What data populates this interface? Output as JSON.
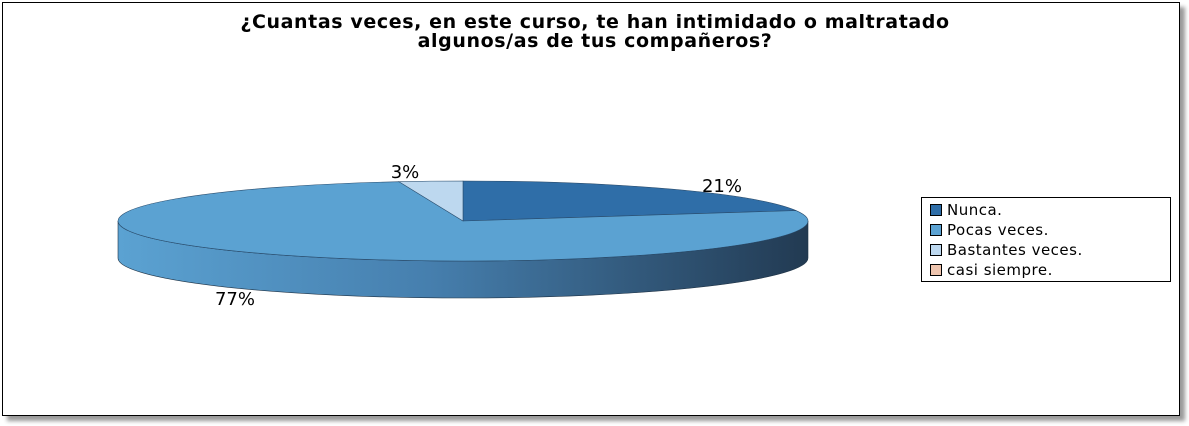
{
  "chart_data": {
    "type": "pie",
    "title_lines": [
      "¿Cuantas veces, en este curso, te han intimidado o maltratado",
      "algunos/as de tus compañeros?"
    ],
    "categories": [
      "Nunca.",
      "Pocas veces.",
      "Bastantes veces.",
      "casi siempre."
    ],
    "values": [
      21,
      77,
      3,
      0
    ],
    "data_labels": [
      "21%",
      "77%",
      "3%",
      ""
    ],
    "colors": [
      "#2f6ea8",
      "#5ba2d2",
      "#bdd8ef",
      "#eec4ae"
    ],
    "legend_position": "right",
    "style": "3d"
  }
}
